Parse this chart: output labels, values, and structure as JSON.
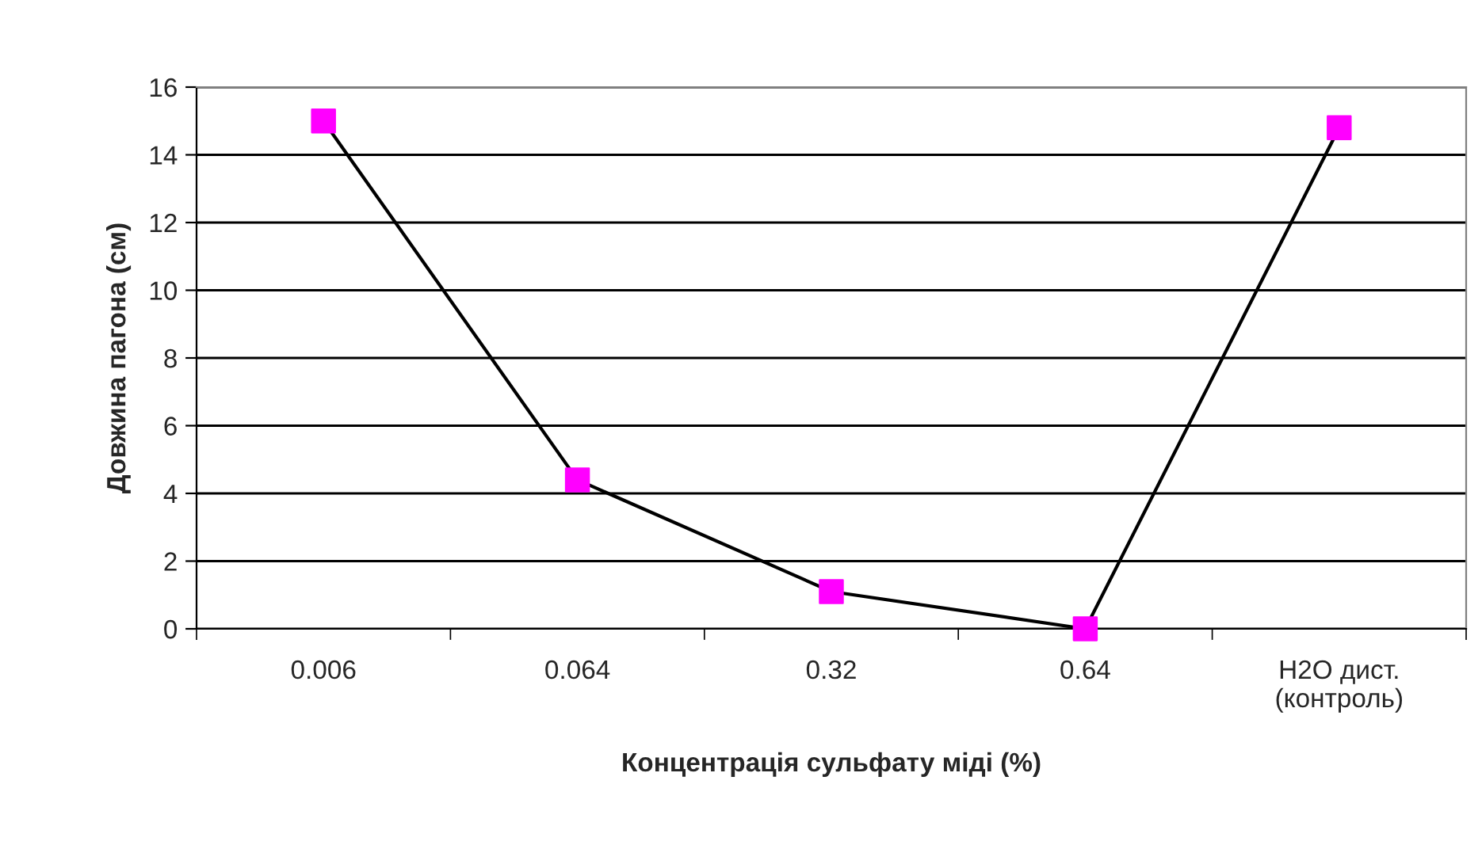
{
  "chart_data": {
    "type": "line",
    "xlabel": "Концентрація сульфату міді (%)",
    "ylabel": "Довжина пагона (см)",
    "categories": [
      "0.006",
      "0.064",
      "0.32",
      "0.64",
      "H2O дист.\n(контроль)"
    ],
    "series": [
      {
        "color": "#ff00ff",
        "values": [
          15.0,
          4.4,
          1.1,
          0,
          14.8
        ]
      }
    ],
    "ylim": [
      0,
      16
    ],
    "yticks": [
      0,
      2,
      4,
      6,
      8,
      10,
      12,
      14,
      16
    ],
    "grid": "y",
    "marker": "square",
    "line_style": "solid",
    "legend": false
  }
}
